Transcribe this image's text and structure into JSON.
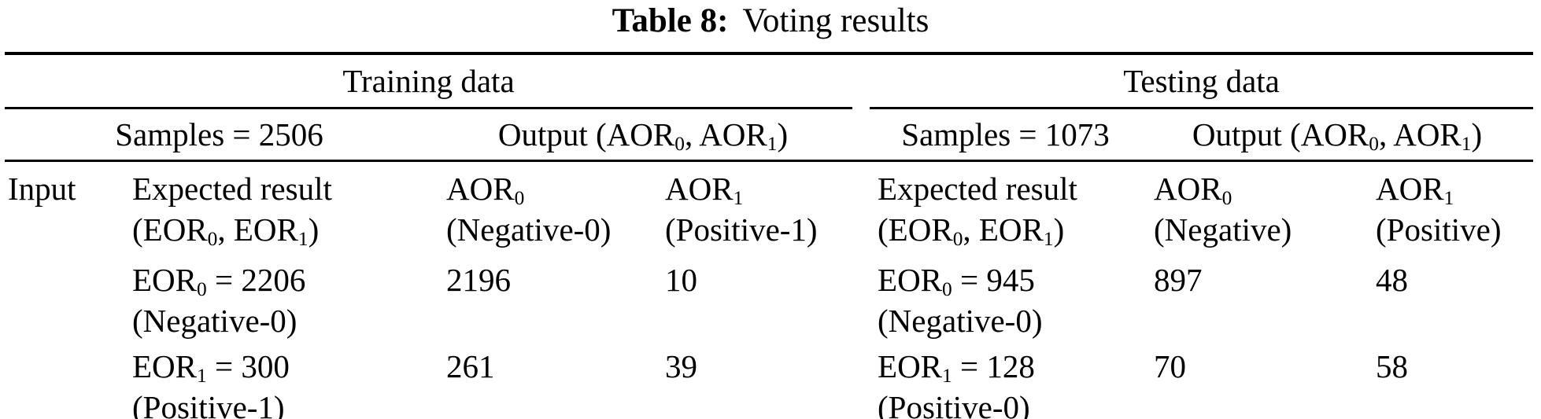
{
  "caption": {
    "label": "Table 8:",
    "title": "Voting results"
  },
  "sections": {
    "training": {
      "header": "Training data",
      "samples": "Samples = 2506",
      "output": "Output (AOR_0, AOR_1)"
    },
    "testing": {
      "header": "Testing data",
      "samples": "Samples = 1073",
      "output": "Output (AOR_0, AOR_1)"
    }
  },
  "columns": {
    "input": "Input",
    "training": {
      "expected": [
        "Expected result",
        "(EOR_0, EOR_1)"
      ],
      "aor0": [
        "AOR_0",
        "(Negative-0)"
      ],
      "aor1": [
        "AOR_1",
        "(Positive-1)"
      ]
    },
    "testing": {
      "expected": [
        "Expected result",
        "(EOR_0, EOR_1)"
      ],
      "aor0": [
        "AOR_0",
        "(Negative)"
      ],
      "aor1": [
        "AOR_1",
        "(Positive)"
      ]
    }
  },
  "rows": {
    "training": [
      {
        "expected": [
          "EOR_0 = 2206",
          "(Negative-0)"
        ],
        "aor0": "2196",
        "aor1": "10"
      },
      {
        "expected": [
          "EOR_1 = 300",
          "(Positive-1)"
        ],
        "aor0": "261",
        "aor1": "39"
      }
    ],
    "testing": [
      {
        "expected": [
          "EOR_0 = 945",
          "(Negative-0)"
        ],
        "aor0": "897",
        "aor1": "48"
      },
      {
        "expected": [
          "EOR_1 = 128",
          "(Positive-0)"
        ],
        "aor0": "70",
        "aor1": "58"
      }
    ]
  },
  "colors": {
    "text": "#000000",
    "background": "#ffffff",
    "rule": "#000000"
  }
}
